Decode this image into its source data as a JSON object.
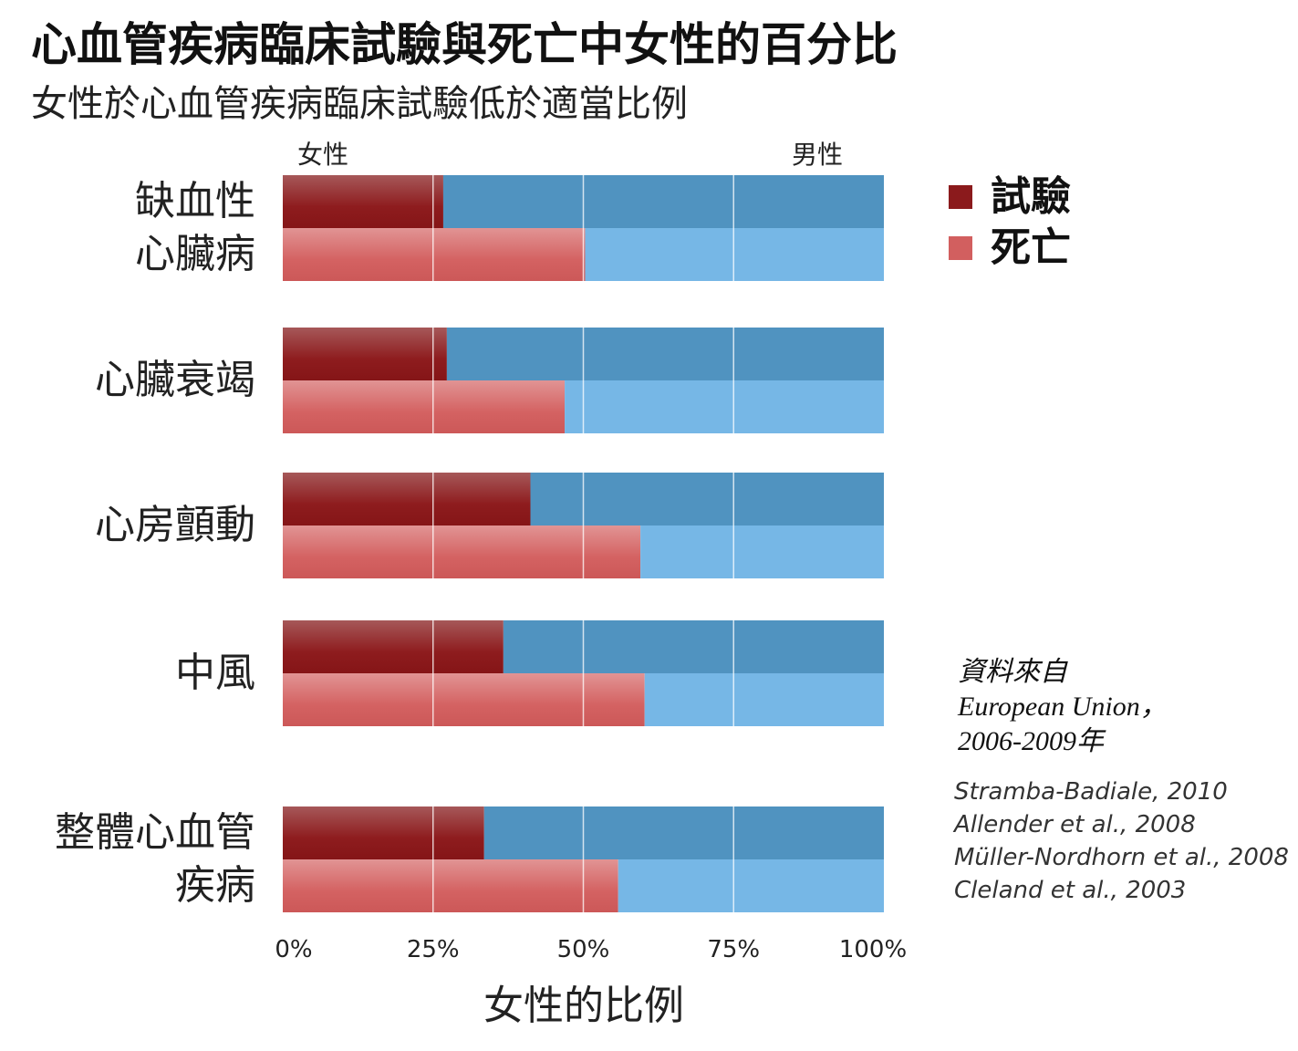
{
  "title": "心血管疾病臨床試驗與死亡中女性的百分比",
  "subtitle": "女性於心血管疾病臨床試驗低於適當比例",
  "female_label": "女性",
  "male_label": "男性",
  "source": {
    "intro": "資料來自",
    "org_line1": "European Union，",
    "org_line2": "2006-2009年",
    "references": [
      "Stramba-Badiale, 2010",
      "Allender et al., 2008",
      "Müller-Nordhorn et al., 2008",
      "Cleland et al., 2003"
    ]
  },
  "chart_data": {
    "type": "bar",
    "orientation": "horizontal",
    "stacked": true,
    "title": "心血管疾病臨床試驗與死亡中女性的百分比",
    "subtitle": "女性於心血管疾病臨床試驗低於適當比例",
    "xlabel": "女性的比例",
    "ylabel": "",
    "xlim": [
      0,
      100
    ],
    "x_ticks": [
      "0%",
      "25%",
      "50%",
      "75%",
      "100%"
    ],
    "categories": [
      [
        "缺血性",
        "心臟病"
      ],
      [
        "心臟衰竭"
      ],
      [
        "心房顫動"
      ],
      [
        "中風"
      ],
      [
        "整體心血管",
        "疾病"
      ]
    ],
    "series": [
      {
        "name": "試驗",
        "values": [
          26.7,
          27.3,
          41.2,
          36.7,
          33.5
        ]
      },
      {
        "name": "死亡",
        "values": [
          50.3,
          46.9,
          59.5,
          60.2,
          55.8
        ]
      }
    ],
    "legend_position": "top-right",
    "grid": true,
    "colors": {
      "trial_female": "#8b1a1c",
      "trial_male": "#5093c0",
      "death_female": "#d25f5f",
      "death_male": "#76b7e6"
    }
  }
}
